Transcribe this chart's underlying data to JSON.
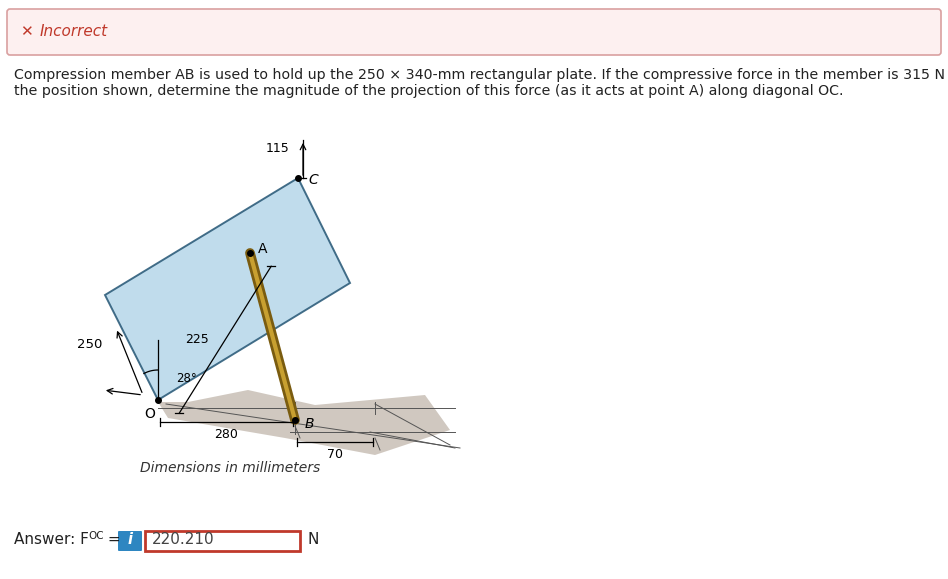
{
  "incorrect_box_bg": "#fdf0f0",
  "incorrect_box_border": "#d9a0a0",
  "incorrect_text_color": "#c0392b",
  "incorrect_label": "Incorrect",
  "problem_text_line1": "Compression member AB is used to hold up the 250 × 340-mm rectangular plate. If the compressive force in the member is 315 N for",
  "problem_text_line2": "the position shown, determine the magnitude of the projection of this force (as it acts at point A) along diagonal OC.",
  "answer_value": "220.210",
  "answer_unit": "N",
  "dim_label": "Dimensions in millimeters",
  "fig_bg": "#ffffff",
  "plate_color": "#b8d8ea",
  "plate_edge_color": "#2a5a78",
  "shadow_color": "#c8bfb5",
  "bar_color_dark": "#7a5c10",
  "bar_color_light": "#c8a030",
  "dim_250": "250",
  "dim_225": "225",
  "dim_115": "115",
  "dim_280": "280",
  "dim_70": "70",
  "dim_28": "28°",
  "label_A": "A",
  "label_B": "B",
  "label_C": "C",
  "label_O": "O",
  "info_btn_color": "#2e86c1",
  "answer_border_color": "#c0392b",
  "text_color": "#222222",
  "dim_color": "#555555"
}
